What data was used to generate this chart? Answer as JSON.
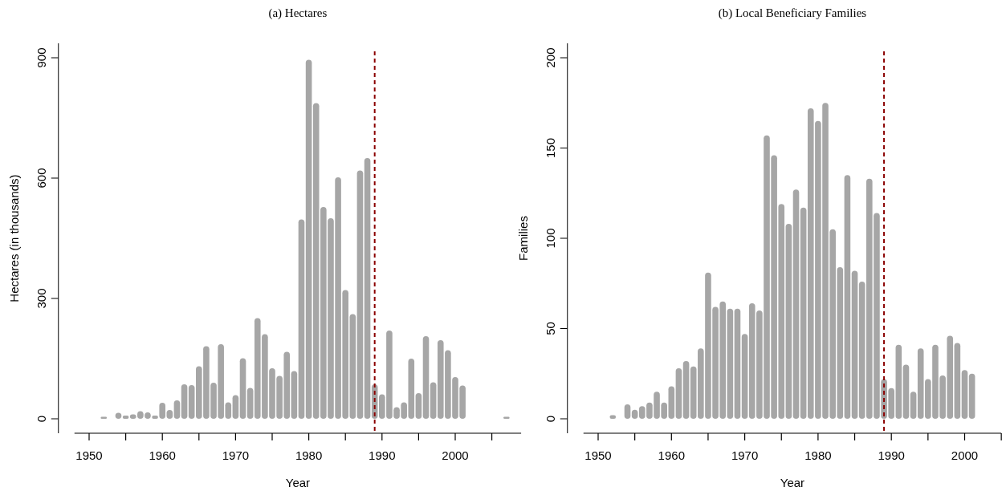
{
  "chart_data": [
    {
      "type": "bar",
      "title": "(a) Hectares",
      "xlabel": "Year",
      "ylabel": "Hectares (in thousands)",
      "x": [
        1952,
        1954,
        1955,
        1956,
        1957,
        1958,
        1959,
        1960,
        1961,
        1962,
        1963,
        1964,
        1965,
        1966,
        1967,
        1968,
        1969,
        1970,
        1971,
        1972,
        1973,
        1974,
        1975,
        1976,
        1977,
        1978,
        1979,
        1980,
        1981,
        1982,
        1983,
        1984,
        1985,
        1986,
        1987,
        1988,
        1989,
        1990,
        1991,
        1992,
        1993,
        1994,
        1995,
        1996,
        1997,
        1998,
        1999,
        2000,
        2001,
        2007
      ],
      "values": [
        5,
        15,
        8,
        11,
        19,
        16,
        8,
        40,
        22,
        46,
        86,
        84,
        131,
        181,
        90,
        186,
        41,
        59,
        151,
        77,
        251,
        211,
        126,
        107,
        167,
        119,
        497,
        895,
        787,
        528,
        500,
        602,
        321,
        261,
        619,
        650,
        86,
        61,
        220,
        29,
        41,
        150,
        64,
        206,
        91,
        196,
        171,
        104,
        83,
        5
      ],
      "color": "#a6a6a6",
      "xlim": [
        1948,
        2009
      ],
      "xticks": [
        1950,
        {
          "value": 1955,
          "label": null
        },
        1960,
        {
          "value": 1965,
          "label": null
        },
        1970,
        {
          "value": 1975,
          "label": null
        },
        1980,
        {
          "value": 1985,
          "label": null
        },
        1990,
        {
          "value": 1995,
          "label": null
        },
        2000,
        {
          "value": 2005,
          "label": null
        }
      ],
      "ylim": [
        -36,
        936
      ],
      "yticks": [
        0,
        300,
        600,
        900
      ],
      "ref_lines": [
        {
          "axis": "x",
          "value": 1989,
          "color": "#8b0000",
          "line_style": "dashed"
        }
      ]
    },
    {
      "type": "bar",
      "title": "(b) Local Beneficiary Families",
      "xlabel": "Year",
      "ylabel": "Families",
      "x": [
        1952,
        1954,
        1955,
        1956,
        1957,
        1958,
        1959,
        1960,
        1961,
        1962,
        1963,
        1964,
        1965,
        1966,
        1967,
        1968,
        1969,
        1970,
        1971,
        1972,
        1973,
        1974,
        1975,
        1976,
        1977,
        1978,
        1979,
        1980,
        1981,
        1982,
        1983,
        1984,
        1985,
        1986,
        1987,
        1988,
        1989,
        1990,
        1991,
        1992,
        1993,
        1994,
        1995,
        1996,
        1997,
        1998,
        1999,
        2000,
        2001
      ],
      "values": [
        2,
        8,
        5,
        7,
        9,
        15,
        9,
        18,
        28,
        32,
        29,
        39,
        81,
        62,
        65,
        61,
        61,
        47,
        64,
        60,
        157,
        146,
        119,
        108,
        127,
        117,
        172,
        165,
        175,
        105,
        84,
        135,
        82,
        76,
        133,
        114,
        22,
        17,
        41,
        30,
        15,
        39,
        22,
        41,
        24,
        46,
        42,
        27,
        25
      ],
      "color": "#a6a6a6",
      "xlim": [
        1948,
        2005
      ],
      "xticks": [
        1950,
        {
          "value": 1955,
          "label": null
        },
        1960,
        {
          "value": 1965,
          "label": null
        },
        1970,
        {
          "value": 1975,
          "label": null
        },
        1980,
        {
          "value": 1985,
          "label": null
        },
        1990,
        {
          "value": 1995,
          "label": null
        },
        2000,
        {
          "value": 2005,
          "label": null
        }
      ],
      "ylim": [
        -8,
        208
      ],
      "yticks": [
        0,
        50,
        100,
        150,
        200
      ],
      "ref_lines": [
        {
          "axis": "x",
          "value": 1989,
          "color": "#8b0000",
          "line_style": "dashed"
        }
      ]
    }
  ]
}
